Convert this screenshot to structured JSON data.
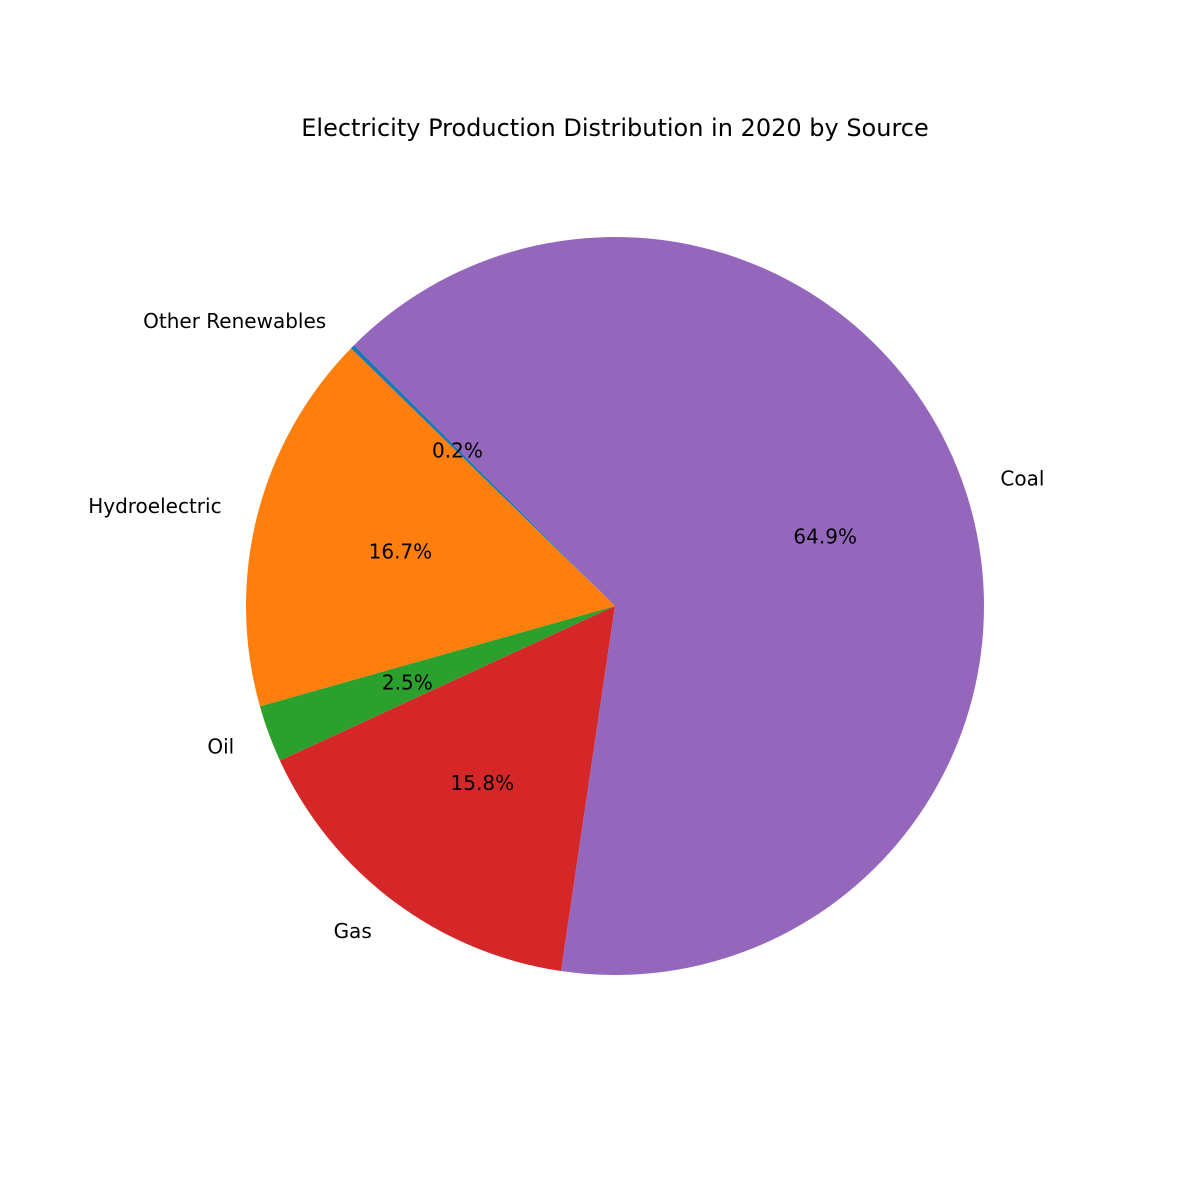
{
  "chart_data": {
    "type": "pie",
    "title": "Electricity Production Distribution in 2020 by Source",
    "start_angle_deg": 135,
    "direction": "counterclockwise",
    "slices": [
      {
        "label": "Other Renewables",
        "value": 0.2,
        "pct_label": "0.2%",
        "color": "#1f77b4"
      },
      {
        "label": "Hydroelectric",
        "value": 16.7,
        "pct_label": "16.7%",
        "color": "#ff7f0e"
      },
      {
        "label": "Oil",
        "value": 2.5,
        "pct_label": "2.5%",
        "color": "#2ca02c"
      },
      {
        "label": "Gas",
        "value": 15.8,
        "pct_label": "15.8%",
        "color": "#d62728"
      },
      {
        "label": "Coal",
        "value": 64.9,
        "pct_label": "64.9%",
        "color": "#9467bd"
      }
    ]
  }
}
